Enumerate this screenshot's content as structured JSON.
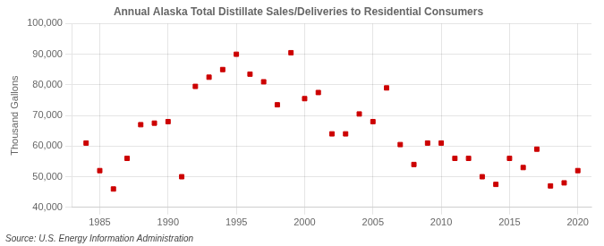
{
  "chart_data": {
    "type": "scatter",
    "title": "Annual Alaska Total Distillate Sales/Deliveries to Residential Consumers",
    "ylabel": "Thousand Gallons",
    "annotation": "Source: U.S. Energy Information Administration",
    "x": [
      1984,
      1985,
      1986,
      1987,
      1988,
      1989,
      1990,
      1991,
      1992,
      1993,
      1994,
      1995,
      1996,
      1997,
      1998,
      1999,
      2000,
      2001,
      2002,
      2003,
      2004,
      2005,
      2006,
      2007,
      2008,
      2009,
      2010,
      2011,
      2012,
      2013,
      2014,
      2015,
      2016,
      2017,
      2018,
      2019,
      2020
    ],
    "values": [
      61000,
      52000,
      46000,
      56000,
      67000,
      67500,
      68000,
      50000,
      79500,
      82500,
      85000,
      90000,
      83500,
      81000,
      73500,
      90500,
      75500,
      77500,
      64000,
      64000,
      70500,
      68000,
      79000,
      60500,
      54000,
      61000,
      61000,
      56000,
      56000,
      50000,
      47500,
      56000,
      53000,
      59000,
      47000,
      48000,
      52000
    ],
    "color": "#cc0000",
    "marker": "square",
    "grid": true,
    "xlim": [
      1983,
      2021
    ],
    "xticks": [
      1985,
      1990,
      1995,
      2000,
      2005,
      2010,
      2015,
      2020
    ],
    "ylim": [
      40000,
      100000
    ],
    "yticks": [
      {
        "value": 40000,
        "label": "40,000"
      },
      {
        "value": 50000,
        "label": "50,000"
      },
      {
        "value": 60000,
        "label": "60,000"
      },
      {
        "value": 70000,
        "label": "70,000"
      },
      {
        "value": 80000,
        "label": "80,000"
      },
      {
        "value": 90000,
        "label": "90,000"
      },
      {
        "value": 100000,
        "label": "100,000"
      }
    ]
  }
}
